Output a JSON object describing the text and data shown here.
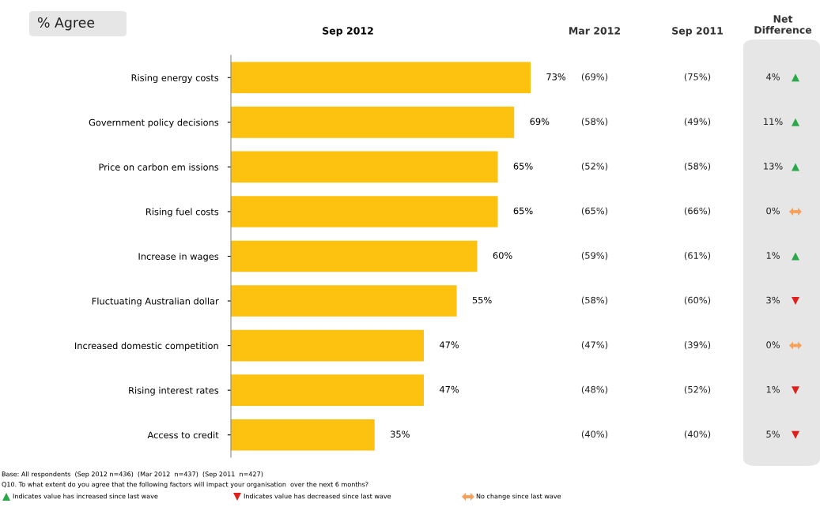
{
  "chart_data": {
    "type": "bar",
    "orientation": "horizontal",
    "title": "% Agree",
    "subtitle": "Sep 2012",
    "categories": [
      "Rising energy costs",
      "Government policy decisions",
      "Price on carbon em issions",
      "Rising fuel costs",
      "Increase in wages",
      "Fluctuating Australian dollar",
      "Increased domestic competition",
      "Rising interest rates",
      "Access to credit"
    ],
    "values": [
      73,
      69,
      65,
      65,
      60,
      55,
      47,
      47,
      35
    ],
    "value_labels": [
      "73%",
      "69%",
      "65%",
      "65%",
      "60%",
      "55%",
      "47%",
      "47%",
      "35%"
    ],
    "color": "#fcc20f",
    "tick_labels": "y",
    "grid": false,
    "legend": false,
    "annotations": [
      "Mar 2012",
      "Sep 2011",
      "Net\nDifference",
      "(69%)",
      "(75%)",
      "4%",
      "(58%)",
      "(49%)",
      "11%",
      "(52%)",
      "(58%)",
      "13%",
      "(65%)",
      "(66%)",
      "0%",
      "(59%)",
      "(61%)",
      "1%",
      "(58%)",
      "(60%)",
      "3%",
      "(47%)",
      "(39%)",
      "0%",
      "(48%)",
      "(52%)",
      "1%",
      "(40%)",
      "(40%)",
      "5%",
      "Base: All respondents  (Sep 2012 n=436)  (Mar 2012  n=437)  (Sep 2011  n=427)",
      "Q10. To what extent do you agree that the following factors will impact your organisation  over the next 6 months?",
      "Indicates value has increased since last wave",
      "Indicates value has decreased since last wave",
      "No change since last wave"
    ]
  }
}
